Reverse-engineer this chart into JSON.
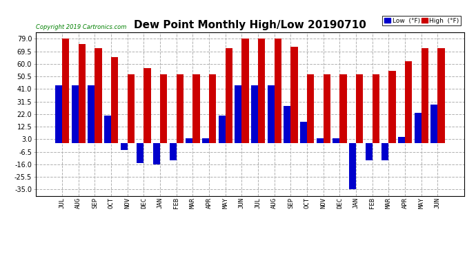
{
  "title": "Dew Point Monthly High/Low 20190710",
  "copyright": "Copyright 2019 Cartronics.com",
  "months": [
    "JUL",
    "AUG",
    "SEP",
    "OCT",
    "NOV",
    "DEC",
    "JAN",
    "FEB",
    "MAR",
    "APR",
    "MAY",
    "JUN",
    "JUL",
    "AUG",
    "SEP",
    "OCT",
    "NOV",
    "DEC",
    "JAN",
    "FEB",
    "MAR",
    "APR",
    "MAY",
    "JUN"
  ],
  "high": [
    79,
    75,
    72,
    65,
    52,
    57,
    52,
    52,
    52,
    52,
    72,
    79,
    79,
    79,
    73,
    52,
    52,
    52,
    52,
    52,
    55,
    62,
    72,
    72
  ],
  "low": [
    44,
    44,
    44,
    21,
    -5,
    -15,
    -16,
    -13,
    4,
    4,
    21,
    44,
    44,
    44,
    28,
    16,
    4,
    4,
    -35,
    -13,
    -13,
    5,
    23,
    29
  ],
  "bar_color_high": "#cc0000",
  "bar_color_low": "#0000cc",
  "background_color": "#ffffff",
  "grid_color": "#b0b0b0",
  "title_fontsize": 11,
  "ylabel_ticks": [
    79.0,
    69.5,
    60.0,
    50.5,
    41.0,
    31.5,
    22.0,
    12.5,
    3.0,
    -6.5,
    -16.0,
    -25.5,
    -35.0
  ],
  "ylim": [
    -40,
    84
  ],
  "legend_label_low": "Low  (°F)",
  "legend_label_high": "High  (°F)"
}
